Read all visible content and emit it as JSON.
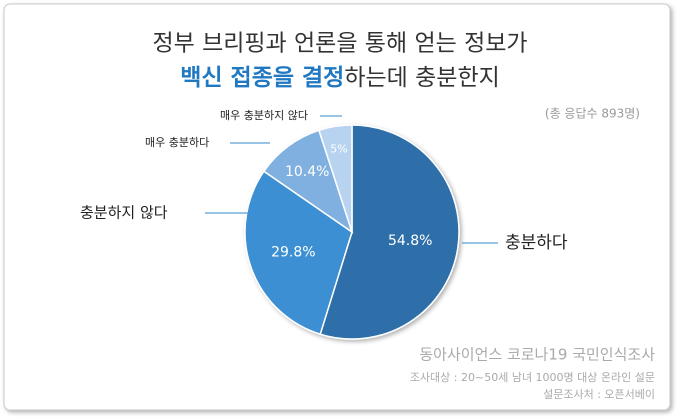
{
  "chart_data": {
    "type": "pie",
    "title": {
      "line1": "정부 브리핑과 언론을 통해 얻는 정보가",
      "line2_highlight": "백신 접종을 결정",
      "line2_rest": "하는데 충분한지"
    },
    "subtitle": "(총 응답수 893명)",
    "categories": [
      "충분하다",
      "충분하지 않다",
      "매우 충분하다",
      "매우 충분하지 않다"
    ],
    "values": [
      54.8,
      29.8,
      10.4,
      5
    ],
    "value_labels": [
      "54.8%",
      "29.8%",
      "10.4%",
      "5%"
    ],
    "colors": [
      "#2f6ea9",
      "#3a8fd2",
      "#7fb0e0",
      "#b8d3ef"
    ],
    "source": [
      "동아사이언스 코로나19 국민인식조사",
      "조사대상 : 20~50세 남녀 1000명 대상 온라인 설문",
      "설문조사처 : 오픈서베이"
    ]
  }
}
